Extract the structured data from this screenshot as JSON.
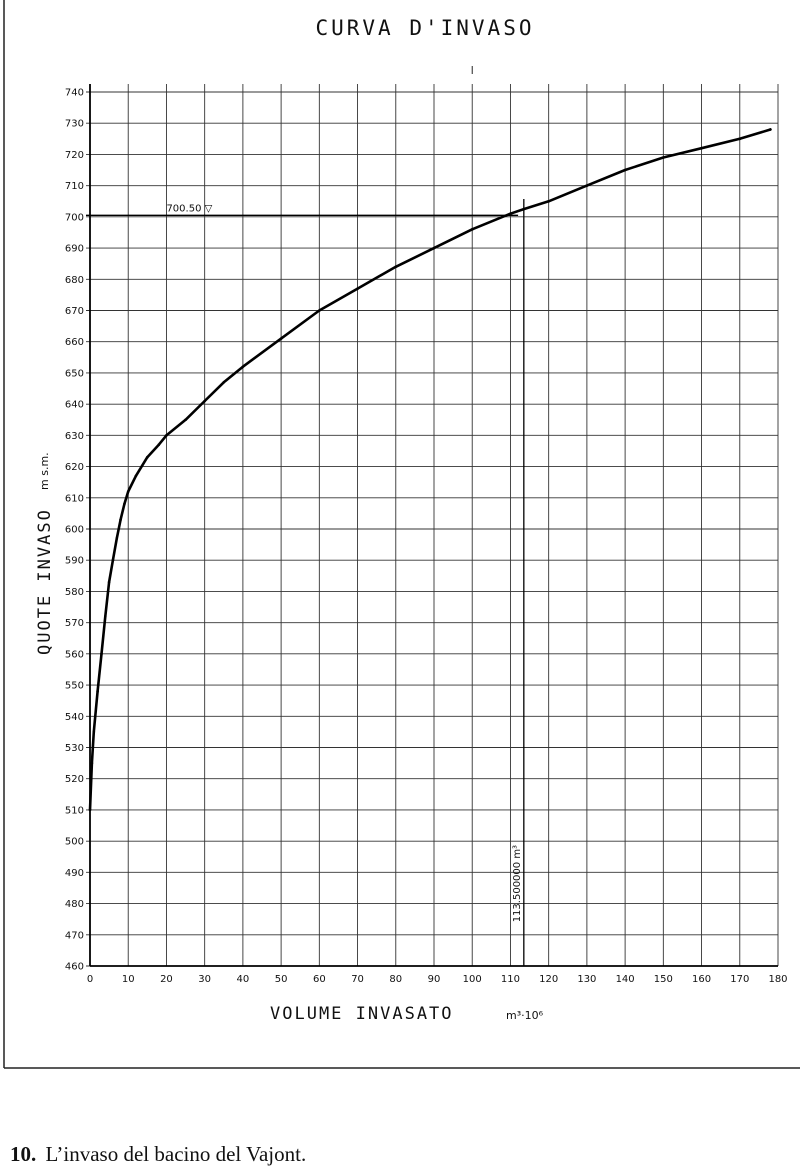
{
  "chart_data": {
    "type": "line",
    "title": "CURVA D'INVASO",
    "xlabel": "VOLUME INVASATO",
    "xunit": "m³·10⁶",
    "ylabel": "QUOTE INVASO",
    "yunit": "m s.m.",
    "xlim": [
      0,
      180
    ],
    "ylim": [
      460,
      740
    ],
    "xticks": [
      "0",
      "10",
      "20",
      "30",
      "40",
      "50",
      "60",
      "70",
      "80",
      "90",
      "100",
      "110",
      "120",
      "130",
      "140",
      "150",
      "160",
      "170",
      "180"
    ],
    "yticks": [
      "460",
      "470",
      "480",
      "490",
      "500",
      "510",
      "520",
      "530",
      "540",
      "550",
      "560",
      "570",
      "580",
      "590",
      "600",
      "610",
      "620",
      "630",
      "640",
      "650",
      "660",
      "670",
      "680",
      "690",
      "700",
      "710",
      "720",
      "730",
      "740"
    ],
    "grid": true,
    "series": [
      {
        "x": [
          0,
          0.5,
          1,
          2,
          3,
          4,
          5,
          6,
          7,
          8,
          9,
          10,
          12,
          15,
          18,
          20,
          25,
          30,
          35,
          40,
          50,
          60,
          70,
          80,
          90,
          100,
          110,
          113.5,
          120,
          130,
          140,
          150,
          160,
          170,
          178
        ],
        "y": [
          510,
          525,
          535,
          548,
          560,
          572,
          583,
          590,
          597,
          603,
          608,
          612,
          617,
          623,
          627,
          630,
          635,
          641,
          647,
          652,
          661,
          670,
          677,
          684,
          690,
          696,
          701,
          702.5,
          705,
          710,
          715,
          719,
          722,
          725,
          728
        ]
      }
    ],
    "annotations": [
      {
        "text": "700.50 ▽",
        "y": 700.5
      },
      {
        "text": "113.500000 m³",
        "x": 113.5
      }
    ]
  },
  "caption": {
    "number": "10.",
    "text": "L’invaso del bacino del Vajont."
  }
}
